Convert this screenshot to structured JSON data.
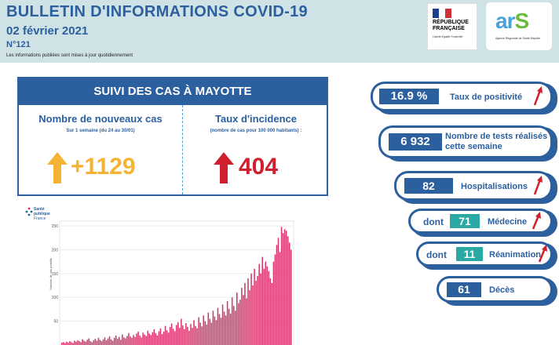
{
  "header": {
    "title": "BULLETIN D'INFORMATIONS COVID-19",
    "date": "02 février 2021",
    "number": "N°121",
    "note": "Les informations publiées sont mises à jour quotidiennement"
  },
  "logos": {
    "republique_line1": "RÉPUBLIQUE",
    "republique_line2": "FRANÇAISE",
    "republique_motto": "Liberté Égalité Fraternité",
    "ars": "ars",
    "ars_sub": "Agence Régionale de Santé Mayotte",
    "spf_line1": "Santé",
    "spf_line2": "publique",
    "spf_line3": "France"
  },
  "suivi": {
    "title": "SUIVI DES CAS À MAYOTTE",
    "nouveaux_title": "Nombre de nouveaux cas",
    "nouveaux_sub": "Sur 1 semaine (du 24 au 30/01)",
    "nouveaux_value": "+1129",
    "incidence_title": "Taux d'incidence",
    "incidence_sub": "(nombre de cas pour 100 000 habitants) :",
    "incidence_value": "404"
  },
  "indicators": {
    "positivite_value": "16.9 %",
    "positivite_label": "Taux de positivité",
    "tests_value": "6 932",
    "tests_label_1": "Nombre de tests réalisés",
    "tests_label_2": "cette semaine",
    "hosp_value": "82",
    "hosp_label": "Hospitalisations",
    "dont": "dont",
    "medecine_value": "71",
    "medecine_label": "Médecine",
    "rea_value": "11",
    "rea_label": "Réanimation",
    "deces_value": "61",
    "deces_label": "Décès"
  },
  "colors": {
    "primary": "#2c5f9e",
    "teal": "#2aa8a4",
    "orange": "#f5b333",
    "red": "#d01f2f",
    "bar": "#d6336c"
  },
  "chart_data": {
    "type": "bar",
    "ylabel": "Nombre de cas positifs",
    "yticks": [
      "250",
      "200",
      "150",
      "100",
      "50"
    ],
    "ylim": [
      0,
      260
    ],
    "values": [
      5,
      6,
      4,
      7,
      5,
      8,
      6,
      4,
      9,
      7,
      10,
      8,
      6,
      12,
      9,
      7,
      11,
      14,
      8,
      6,
      10,
      13,
      9,
      15,
      11,
      8,
      12,
      16,
      10,
      14,
      18,
      12,
      9,
      15,
      20,
      13,
      17,
      11,
      22,
      16,
      14,
      19,
      25,
      18,
      15,
      21,
      17,
      24,
      28,
      20,
      16,
      26,
      22,
      19,
      30,
      24,
      21,
      27,
      33,
      25,
      20,
      29,
      35,
      23,
      28,
      40,
      31,
      26,
      38,
      45,
      34,
      29,
      42,
      48,
      36,
      55,
      41,
      33,
      46,
      38,
      30,
      44,
      36,
      52,
      40,
      35,
      58,
      47,
      39,
      62,
      50,
      43,
      68,
      55,
      47,
      72,
      60,
      52,
      78,
      65,
      57,
      85,
      70,
      62,
      92,
      76,
      66,
      100,
      82,
      72,
      110,
      88,
      95,
      120,
      105,
      130,
      98,
      140,
      115,
      150,
      125,
      160,
      135,
      145,
      170,
      150,
      185,
      160,
      175,
      165,
      155,
      140,
      130,
      175,
      190,
      210,
      225,
      195,
      248,
      235,
      243,
      240,
      228,
      215,
      200
    ]
  }
}
